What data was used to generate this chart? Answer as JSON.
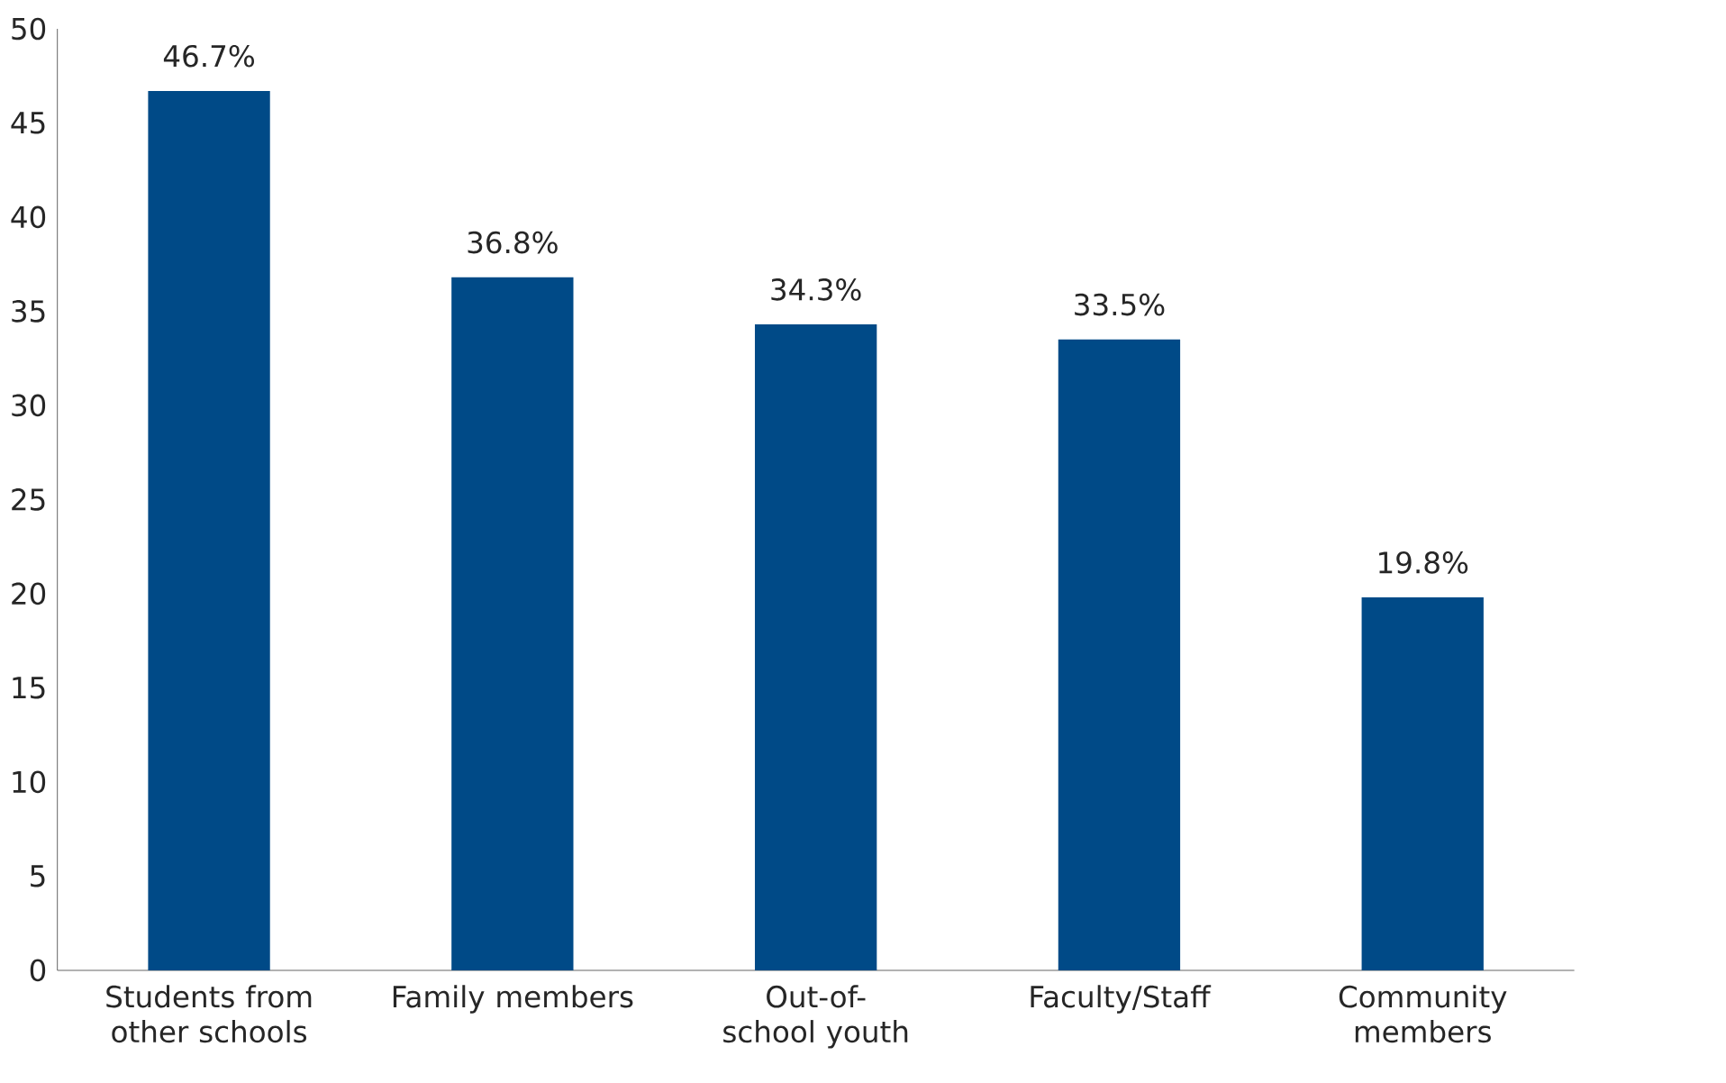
{
  "chart_data": {
    "type": "bar",
    "categories": [
      "Students from other schools",
      "Family members",
      "Out-of-school youth",
      "Faculty/Staff",
      "Community members"
    ],
    "values": [
      46.7,
      36.8,
      34.3,
      33.5,
      19.8
    ],
    "value_labels": [
      "46.7%",
      "36.8%",
      "34.3%",
      "33.5%",
      "19.8%"
    ],
    "color": "#004a87",
    "ylim": [
      0,
      50
    ],
    "yticks": [
      0,
      5,
      10,
      15,
      20,
      25,
      30,
      35,
      40,
      45,
      50
    ]
  }
}
